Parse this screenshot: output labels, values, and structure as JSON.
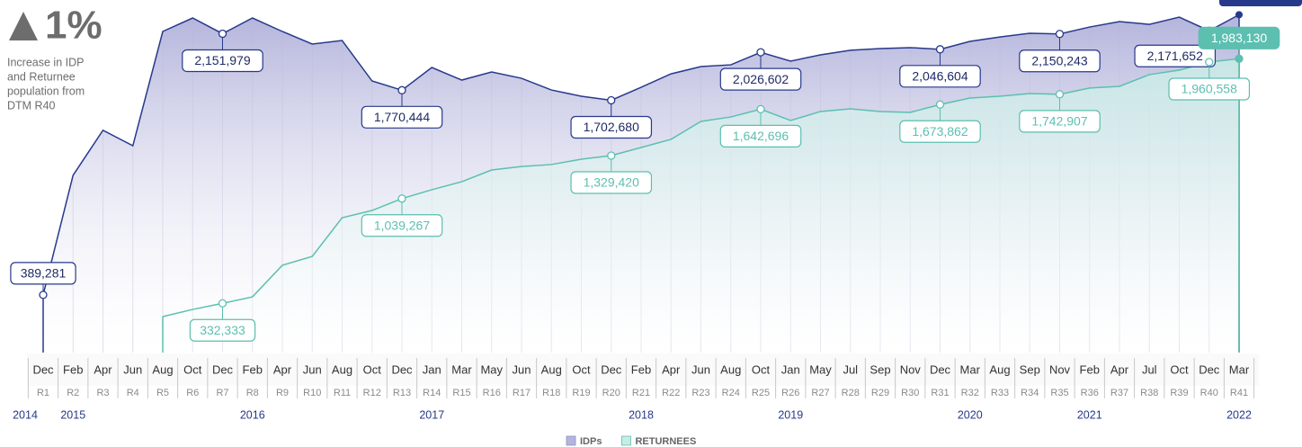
{
  "chart_data": {
    "type": "area",
    "annotation": {
      "headline": "1%",
      "lines": [
        "Increase in IDP",
        "and Returnee",
        "population from",
        "DTM R40"
      ]
    },
    "categories": [
      "Dec",
      "Feb",
      "Apr",
      "Jun",
      "Aug",
      "Oct",
      "Dec",
      "Feb",
      "Apr",
      "Jun",
      "Aug",
      "Oct",
      "Dec",
      "Jan",
      "Mar",
      "May",
      "Jun",
      "Aug",
      "Oct",
      "Dec",
      "Feb",
      "Apr",
      "Jun",
      "Aug",
      "Oct",
      "Jan",
      "May",
      "Jul",
      "Sep",
      "Nov",
      "Dec",
      "Mar",
      "Aug",
      "Sep",
      "Nov",
      "Feb",
      "Apr",
      "Jul",
      "Oct",
      "Dec",
      "Mar"
    ],
    "rounds": [
      "R1",
      "R2",
      "R3",
      "R4",
      "R5",
      "R6",
      "R7",
      "R8",
      "R9",
      "R10",
      "R11",
      "R12",
      "R13",
      "R14",
      "R15",
      "R16",
      "R17",
      "R18",
      "R19",
      "R20",
      "R21",
      "R22",
      "R23",
      "R24",
      "R25",
      "R26",
      "R27",
      "R28",
      "R29",
      "R30",
      "R31",
      "R32",
      "R33",
      "R34",
      "R35",
      "R36",
      "R37",
      "R38",
      "R39",
      "R40",
      "R41"
    ],
    "years": [
      "2014",
      "2015",
      null,
      null,
      null,
      null,
      null,
      "2016",
      null,
      null,
      null,
      null,
      null,
      "2017",
      null,
      null,
      null,
      null,
      null,
      null,
      "2018",
      null,
      null,
      null,
      null,
      "2019",
      null,
      null,
      null,
      null,
      null,
      "2020",
      null,
      null,
      null,
      "2021",
      null,
      null,
      null,
      null,
      "2022"
    ],
    "series": [
      {
        "name": "IDPs",
        "color": "#27398a",
        "area_color": "#b4b4dc",
        "values": [
          389281,
          1196000,
          1500000,
          1396000,
          2167000,
          2258000,
          2151979,
          2258000,
          2167000,
          2082000,
          2106000,
          1833000,
          1770444,
          1924000,
          1839000,
          1894000,
          1851000,
          1772000,
          1730000,
          1702680,
          1790000,
          1881000,
          1930000,
          1942000,
          2026602,
          1967000,
          2009000,
          2040000,
          2052000,
          2058000,
          2046604,
          2100000,
          2130000,
          2155000,
          2150243,
          2197000,
          2234000,
          2215000,
          2264000,
          2171652,
          2280000
        ],
        "value_labels": [
          "389,281",
          null,
          null,
          null,
          null,
          null,
          "2,151,979",
          null,
          null,
          null,
          null,
          null,
          "1,770,444",
          null,
          null,
          null,
          null,
          null,
          null,
          "1,702,680",
          null,
          null,
          null,
          null,
          "2,026,602",
          null,
          null,
          null,
          null,
          null,
          "2,046,604",
          null,
          null,
          null,
          "2,150,243",
          null,
          null,
          null,
          null,
          "2,171,652",
          null
        ]
      },
      {
        "name": "RETURNEES",
        "color": "#5cbfb0",
        "area_color": "#c8ece5",
        "values": [
          null,
          null,
          null,
          null,
          243000,
          291000,
          332333,
          376000,
          589000,
          649000,
          910000,
          959000,
          1039267,
          1099000,
          1153000,
          1232000,
          1256000,
          1269000,
          1305000,
          1329420,
          1384000,
          1439000,
          1560000,
          1590000,
          1642696,
          1566000,
          1627000,
          1645000,
          1627000,
          1621000,
          1673862,
          1718000,
          1730000,
          1748000,
          1742907,
          1785000,
          1797000,
          1876000,
          1906000,
          1960558,
          1983130
        ],
        "value_labels": [
          null,
          null,
          null,
          null,
          null,
          null,
          "332,333",
          null,
          null,
          null,
          null,
          null,
          "1,039,267",
          null,
          null,
          null,
          null,
          null,
          null,
          "1,329,420",
          null,
          null,
          null,
          null,
          "1,642,696",
          null,
          null,
          null,
          null,
          null,
          "1,673,862",
          null,
          null,
          null,
          "1,742,907",
          null,
          null,
          null,
          null,
          "1,960,558",
          "1,983,130"
        ]
      }
    ]
  }
}
